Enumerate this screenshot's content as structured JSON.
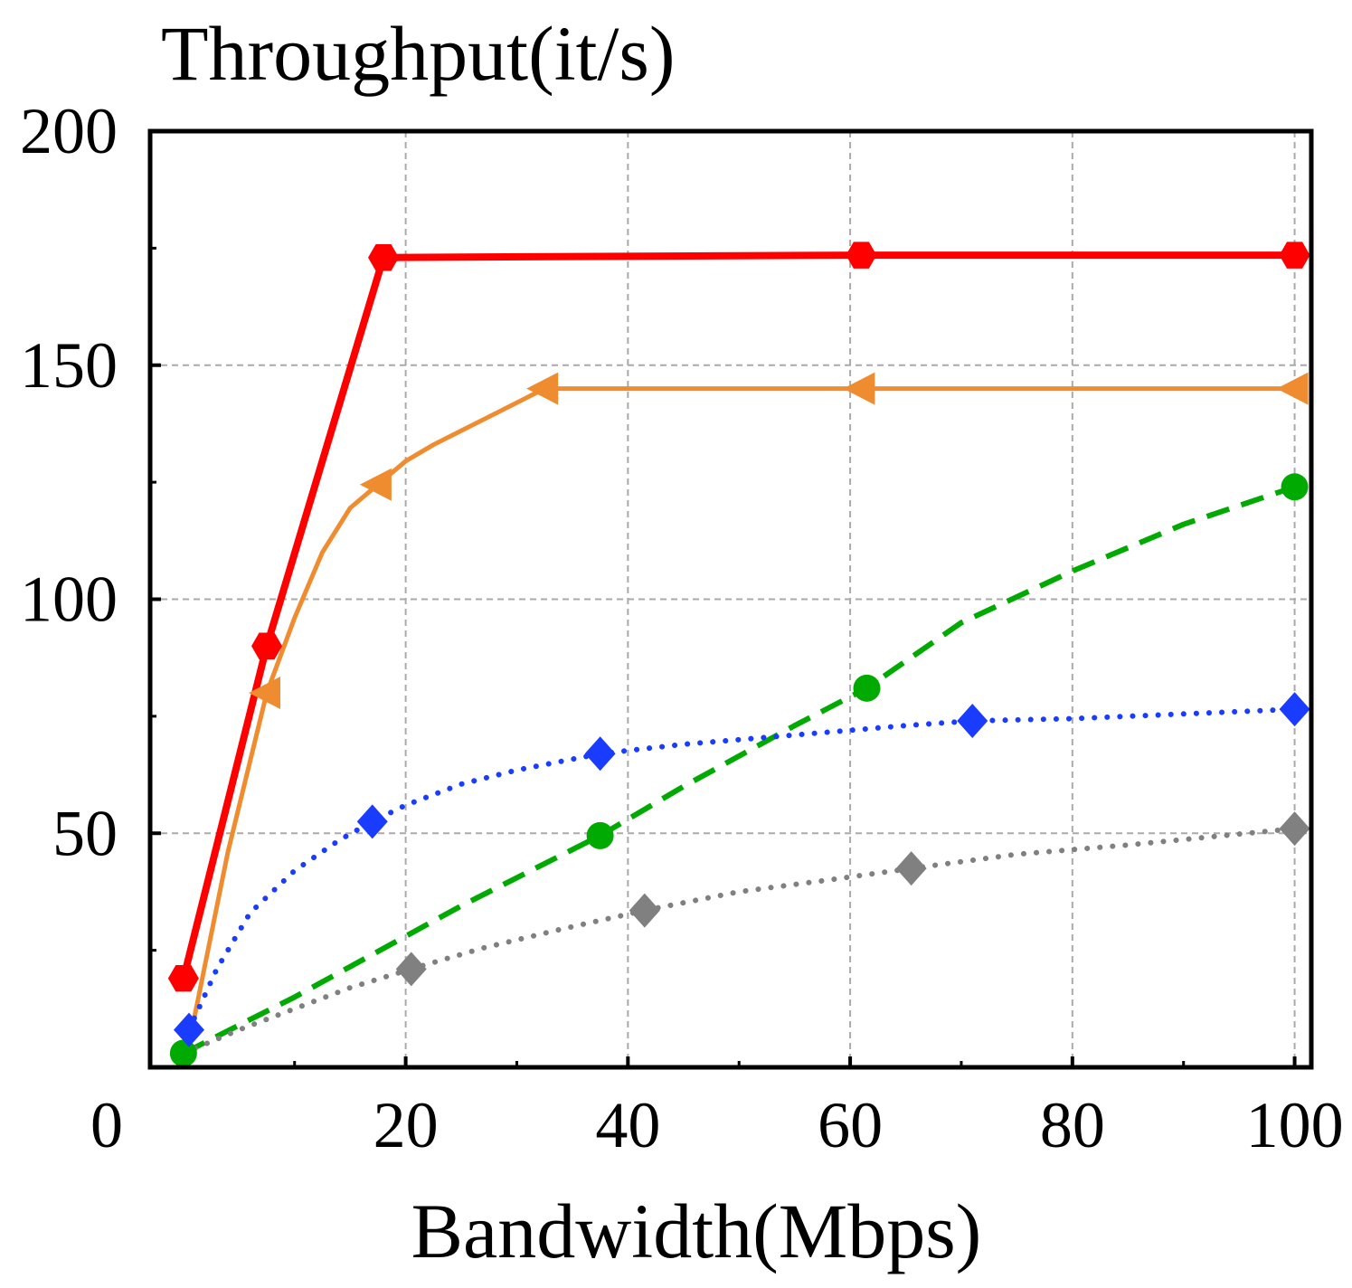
{
  "chart_data": {
    "type": "line",
    "ylabel": "Throughput(it/s)",
    "xlabel": "Bandwidth(Mbps)",
    "xlim": [
      -3,
      101.5
    ],
    "ylim": [
      0,
      200
    ],
    "x_ticks": [
      20,
      40,
      60,
      80,
      100
    ],
    "x_minor_ticks": [
      10,
      30,
      50,
      70,
      90
    ],
    "y_ticks": [
      50,
      100,
      150,
      200
    ],
    "y_minor_ticks": [
      25,
      75,
      125,
      175
    ],
    "zero_label": "0",
    "grid": true,
    "legend": "none",
    "series": [
      {
        "color": "#ff0000",
        "line_style": "solid",
        "marker": "hexagon",
        "line_width": 8,
        "x": [
          0,
          7.5,
          18,
          61,
          100
        ],
        "y": [
          19,
          90,
          173,
          173.5,
          173.5
        ],
        "marker_indices": [
          0,
          1,
          2,
          3,
          4
        ]
      },
      {
        "color": "#f08c30",
        "line_style": "solid",
        "marker": "triangle-left",
        "line_width": 5,
        "x": [
          0.5,
          4,
          7.5,
          10,
          12.5,
          15,
          17.5,
          20,
          22.5,
          25,
          27.5,
          30,
          32.5,
          61,
          100
        ],
        "y": [
          5,
          46,
          80,
          96,
          110,
          119.5,
          124.5,
          129.5,
          133,
          136,
          139,
          142,
          145,
          145,
          145
        ],
        "marker_indices": [
          2,
          6,
          12,
          13,
          14
        ]
      },
      {
        "color": "#00aa00",
        "line_style": "dashed",
        "marker": "circle",
        "line_width": 6,
        "x": [
          0,
          5,
          10,
          15,
          20,
          25,
          30,
          37.5,
          45,
          55,
          61.5,
          70,
          80,
          90,
          100
        ],
        "y": [
          3,
          9,
          15,
          21.5,
          28,
          34.5,
          40.5,
          49.5,
          60,
          73,
          81,
          95,
          106,
          116,
          124
        ],
        "marker_indices": [
          0,
          7,
          10,
          14
        ]
      },
      {
        "color": "#1a3cff",
        "line_style": "dotted",
        "marker": "diamond",
        "line_width": 6,
        "x": [
          0.5,
          3,
          6,
          10,
          14,
          17,
          20,
          25,
          30,
          37.5,
          45,
          55,
          65,
          71,
          80,
          90,
          100
        ],
        "y": [
          8,
          21,
          33,
          42,
          48.5,
          52.5,
          56,
          60.5,
          63.5,
          67,
          69,
          71,
          73,
          74,
          74.5,
          75.5,
          76.5
        ],
        "marker_indices": [
          0,
          5,
          9,
          13,
          16
        ]
      },
      {
        "color": "#808080",
        "line_style": "dotted",
        "marker": "diamond",
        "line_width": 6,
        "x": [
          0,
          5,
          10,
          15,
          20.5,
          27,
          34,
          41.5,
          50,
          58,
          65.5,
          75,
          85,
          100
        ],
        "y": [
          3,
          8,
          12.5,
          17,
          21,
          25.5,
          29.5,
          33.5,
          37.5,
          40,
          42.5,
          45.5,
          47.5,
          51
        ],
        "marker_indices": [
          4,
          7,
          10,
          13
        ]
      }
    ]
  }
}
